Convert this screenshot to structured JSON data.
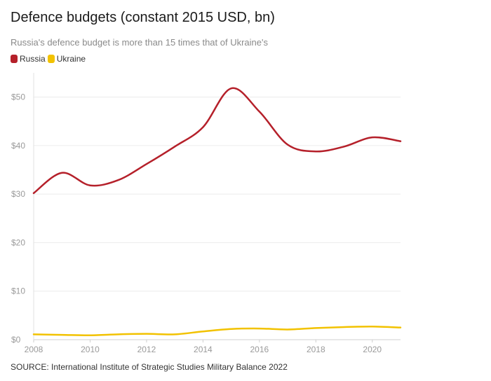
{
  "header": {
    "title": "Defence budgets (constant 2015 USD, bn)",
    "subtitle": "Russia's defence budget is more than 15 times that of Ukraine's"
  },
  "legend": {
    "items": [
      {
        "label": "Russia",
        "color": "#b5202a"
      },
      {
        "label": "Ukraine",
        "color": "#f2c200"
      }
    ]
  },
  "footer": {
    "source": "SOURCE: International Institute of Strategic Studies Military Balance 2022"
  },
  "chart_data": {
    "type": "line",
    "title": "Defence budgets (constant 2015 USD, bn)",
    "subtitle": "Russia's defence budget is more than 15 times that of Ukraine's",
    "xlabel": "",
    "ylabel": "",
    "x": [
      2008,
      2009,
      2010,
      2011,
      2012,
      2013,
      2014,
      2015,
      2016,
      2017,
      2018,
      2019,
      2020,
      2021
    ],
    "series": [
      {
        "name": "Russia",
        "color": "#b5202a",
        "values": [
          30.2,
          34.4,
          31.8,
          32.9,
          36.2,
          39.8,
          43.8,
          51.8,
          47.0,
          40.2,
          38.8,
          39.8,
          41.7,
          40.9
        ]
      },
      {
        "name": "Ukraine",
        "color": "#f2c200",
        "values": [
          1.1,
          1.0,
          0.9,
          1.1,
          1.2,
          1.1,
          1.7,
          2.2,
          2.3,
          2.1,
          2.4,
          2.6,
          2.7,
          2.5
        ]
      }
    ],
    "xlim": [
      2008,
      2021
    ],
    "ylim": [
      0,
      55
    ],
    "yticks": [
      0,
      10,
      20,
      30,
      40,
      50
    ],
    "ytick_labels": [
      "$0",
      "$10",
      "$20",
      "$30",
      "$40",
      "$50"
    ],
    "xticks": [
      2008,
      2010,
      2012,
      2014,
      2016,
      2018,
      2020
    ],
    "xtick_labels": [
      "2008",
      "2010",
      "2012",
      "2014",
      "2016",
      "2018",
      "2020"
    ],
    "grid": true,
    "legend_position": "top-left"
  }
}
